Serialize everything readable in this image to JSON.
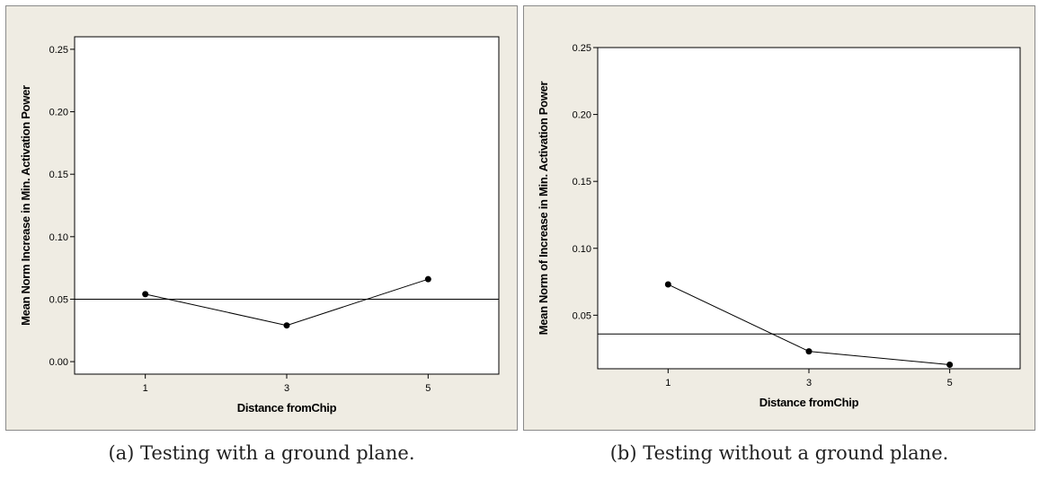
{
  "chart_data": [
    {
      "type": "line",
      "xlabel": "Distance fromChip",
      "ylabel": "Mean Norm Increase in Min. Activation Power",
      "x": [
        1,
        3,
        5
      ],
      "xlim": [
        0,
        6
      ],
      "ylim": [
        -0.01,
        0.26
      ],
      "yticks": [
        0.0,
        0.05,
        0.1,
        0.15,
        0.2,
        0.25
      ],
      "ytick_labels": [
        "0.00",
        "0.05",
        "0.10",
        "0.15",
        "0.20",
        "0.25"
      ],
      "series": [
        {
          "values": [
            0.054,
            0.029,
            0.066
          ]
        }
      ],
      "reference_line": 0.05,
      "grid": false,
      "caption": "(a)  Testing with a ground plane."
    },
    {
      "type": "line",
      "xlabel": "Distance fromChip",
      "ylabel": "Mean Norm of Increase in Min. Activation Power",
      "x": [
        1,
        3,
        5
      ],
      "xlim": [
        0,
        6
      ],
      "ylim": [
        0.01,
        0.25
      ],
      "yticks": [
        0.05,
        0.1,
        0.15,
        0.2,
        0.25
      ],
      "ytick_labels": [
        "0.05",
        "0.10",
        "0.15",
        "0.20",
        "0.25"
      ],
      "series": [
        {
          "values": [
            0.073,
            0.023,
            0.013
          ]
        }
      ],
      "reference_line": 0.036,
      "grid": false,
      "caption": "(b)  Testing without a ground plane."
    }
  ]
}
